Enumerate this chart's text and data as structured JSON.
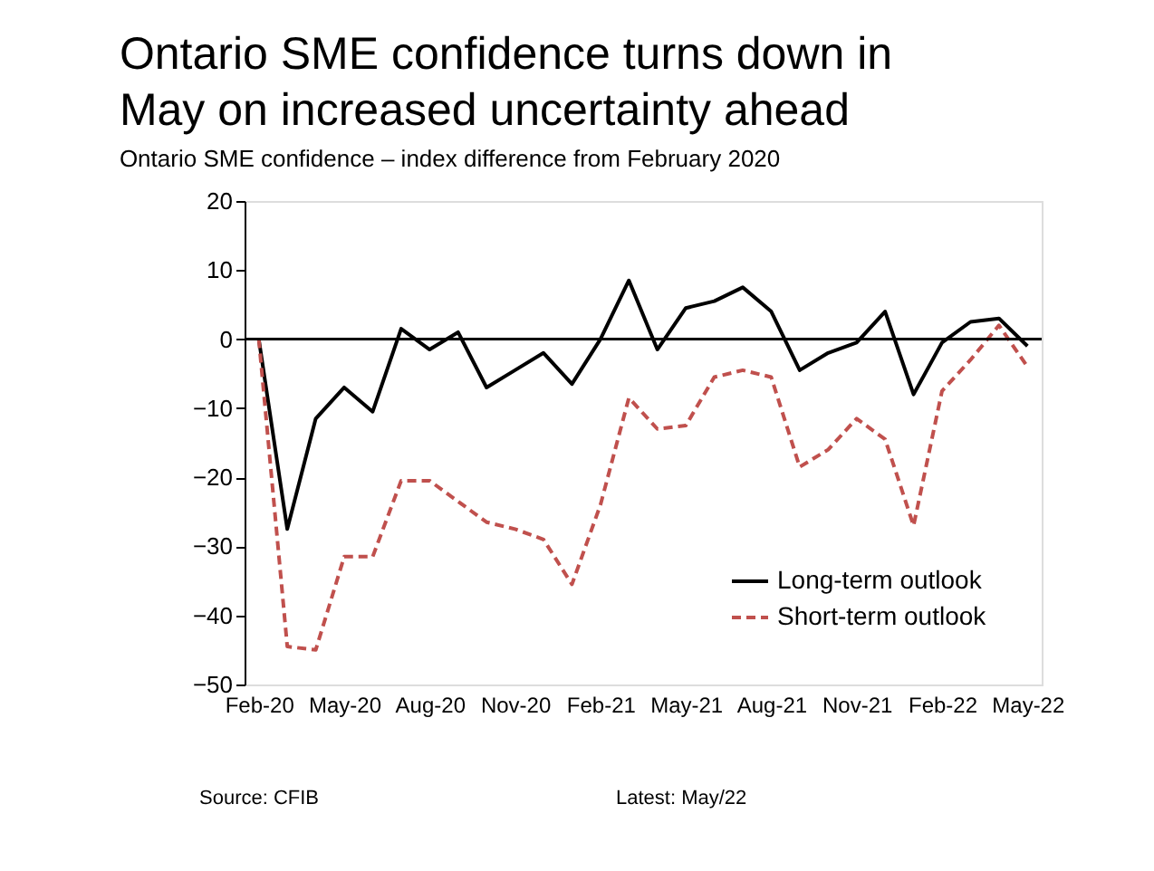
{
  "chart_data": {
    "type": "line",
    "title": "Ontario SME confidence turns down in May on increased uncertainty ahead",
    "subtitle": "Ontario SME confidence – index difference from February 2020",
    "categories": [
      "Feb-20",
      null,
      null,
      "May-20",
      null,
      null,
      "Aug-20",
      null,
      null,
      "Nov-20",
      null,
      null,
      "Feb-21",
      null,
      null,
      "May-21",
      null,
      null,
      "Aug-21",
      null,
      null,
      "Nov-21",
      null,
      null,
      "Feb-22",
      null,
      null,
      "May-22"
    ],
    "series": [
      {
        "name": "Long-term outlook",
        "color": "#000000",
        "line_style": "solid",
        "values": [
          0,
          -27.5,
          -11.5,
          -7,
          -10.5,
          1.5,
          -1.5,
          1,
          -7,
          -4.5,
          -2,
          -6.5,
          0,
          8.5,
          -1.5,
          4.5,
          5.5,
          7.5,
          4,
          -4.5,
          -2,
          -0.5,
          4,
          -8,
          -0.5,
          2.5,
          3,
          -1
        ]
      },
      {
        "name": "Short-term outlook",
        "color": "#c0504d",
        "line_style": "dashed",
        "values": [
          0,
          -44.5,
          -45,
          -31.5,
          -31.5,
          -20.5,
          -20.5,
          -23.5,
          -26.5,
          -27.5,
          -29,
          -35.5,
          -24,
          -8.5,
          -13,
          -12.5,
          -5.5,
          -4.5,
          -5.5,
          -18.5,
          -16,
          -11.5,
          -14.5,
          -27,
          -7.5,
          -3,
          2,
          -4
        ]
      }
    ],
    "ylim": [
      -50,
      20
    ],
    "yticks": [
      -50,
      -40,
      -30,
      -20,
      -10,
      0,
      10,
      20
    ],
    "ref_lines": [
      {
        "axis": "y",
        "value": 0,
        "color": "#000000"
      }
    ],
    "legend": "bottom right",
    "annotations": [
      "Source: CFIB",
      "Latest: May/22"
    ]
  }
}
